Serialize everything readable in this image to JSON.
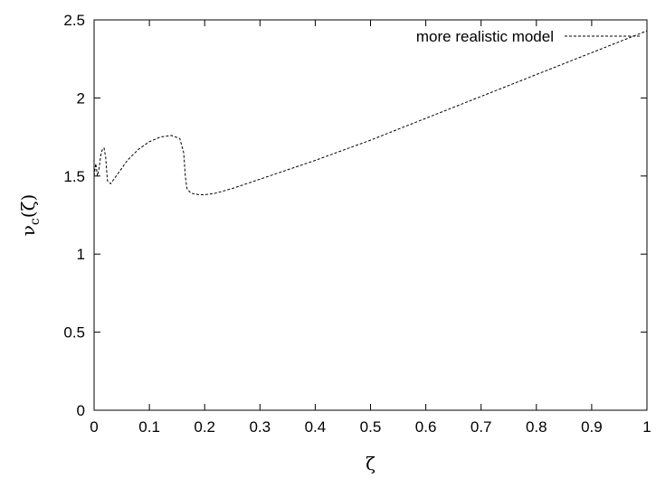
{
  "chart_data": {
    "type": "line",
    "title": "",
    "xlabel": "ζ",
    "ylabel": "ν_c(ζ)",
    "ylabel_parts": {
      "main": "ν",
      "sub": "c",
      "rest": "(ζ)"
    },
    "xlim": [
      0,
      1
    ],
    "ylim": [
      0,
      2.5
    ],
    "xticks": [
      "0",
      "0.1",
      "0.2",
      "0.3",
      "0.4",
      "0.5",
      "0.6",
      "0.7",
      "0.8",
      "0.9",
      "1"
    ],
    "yticks": [
      "0",
      "0.5",
      "1",
      "1.5",
      "2",
      "2.5"
    ],
    "grid": false,
    "legend_position": "top-right",
    "series": [
      {
        "name": "more realistic model",
        "line_style": "dashed",
        "color": "#000000",
        "x": [
          0.0,
          0.003,
          0.006,
          0.009,
          0.012,
          0.015,
          0.018,
          0.021,
          0.024,
          0.027,
          0.03,
          0.04,
          0.05,
          0.06,
          0.08,
          0.1,
          0.12,
          0.14,
          0.155,
          0.162,
          0.165,
          0.168,
          0.175,
          0.19,
          0.2,
          0.22,
          0.25,
          0.3,
          0.35,
          0.4,
          0.5,
          0.6,
          0.7,
          0.8,
          0.9,
          1.0
        ],
        "y": [
          1.5,
          1.58,
          1.5,
          1.55,
          1.63,
          1.67,
          1.68,
          1.62,
          1.47,
          1.46,
          1.45,
          1.5,
          1.55,
          1.6,
          1.67,
          1.72,
          1.75,
          1.76,
          1.74,
          1.65,
          1.5,
          1.42,
          1.39,
          1.38,
          1.38,
          1.39,
          1.42,
          1.48,
          1.54,
          1.6,
          1.73,
          1.87,
          2.01,
          2.15,
          2.29,
          2.43
        ]
      }
    ]
  }
}
